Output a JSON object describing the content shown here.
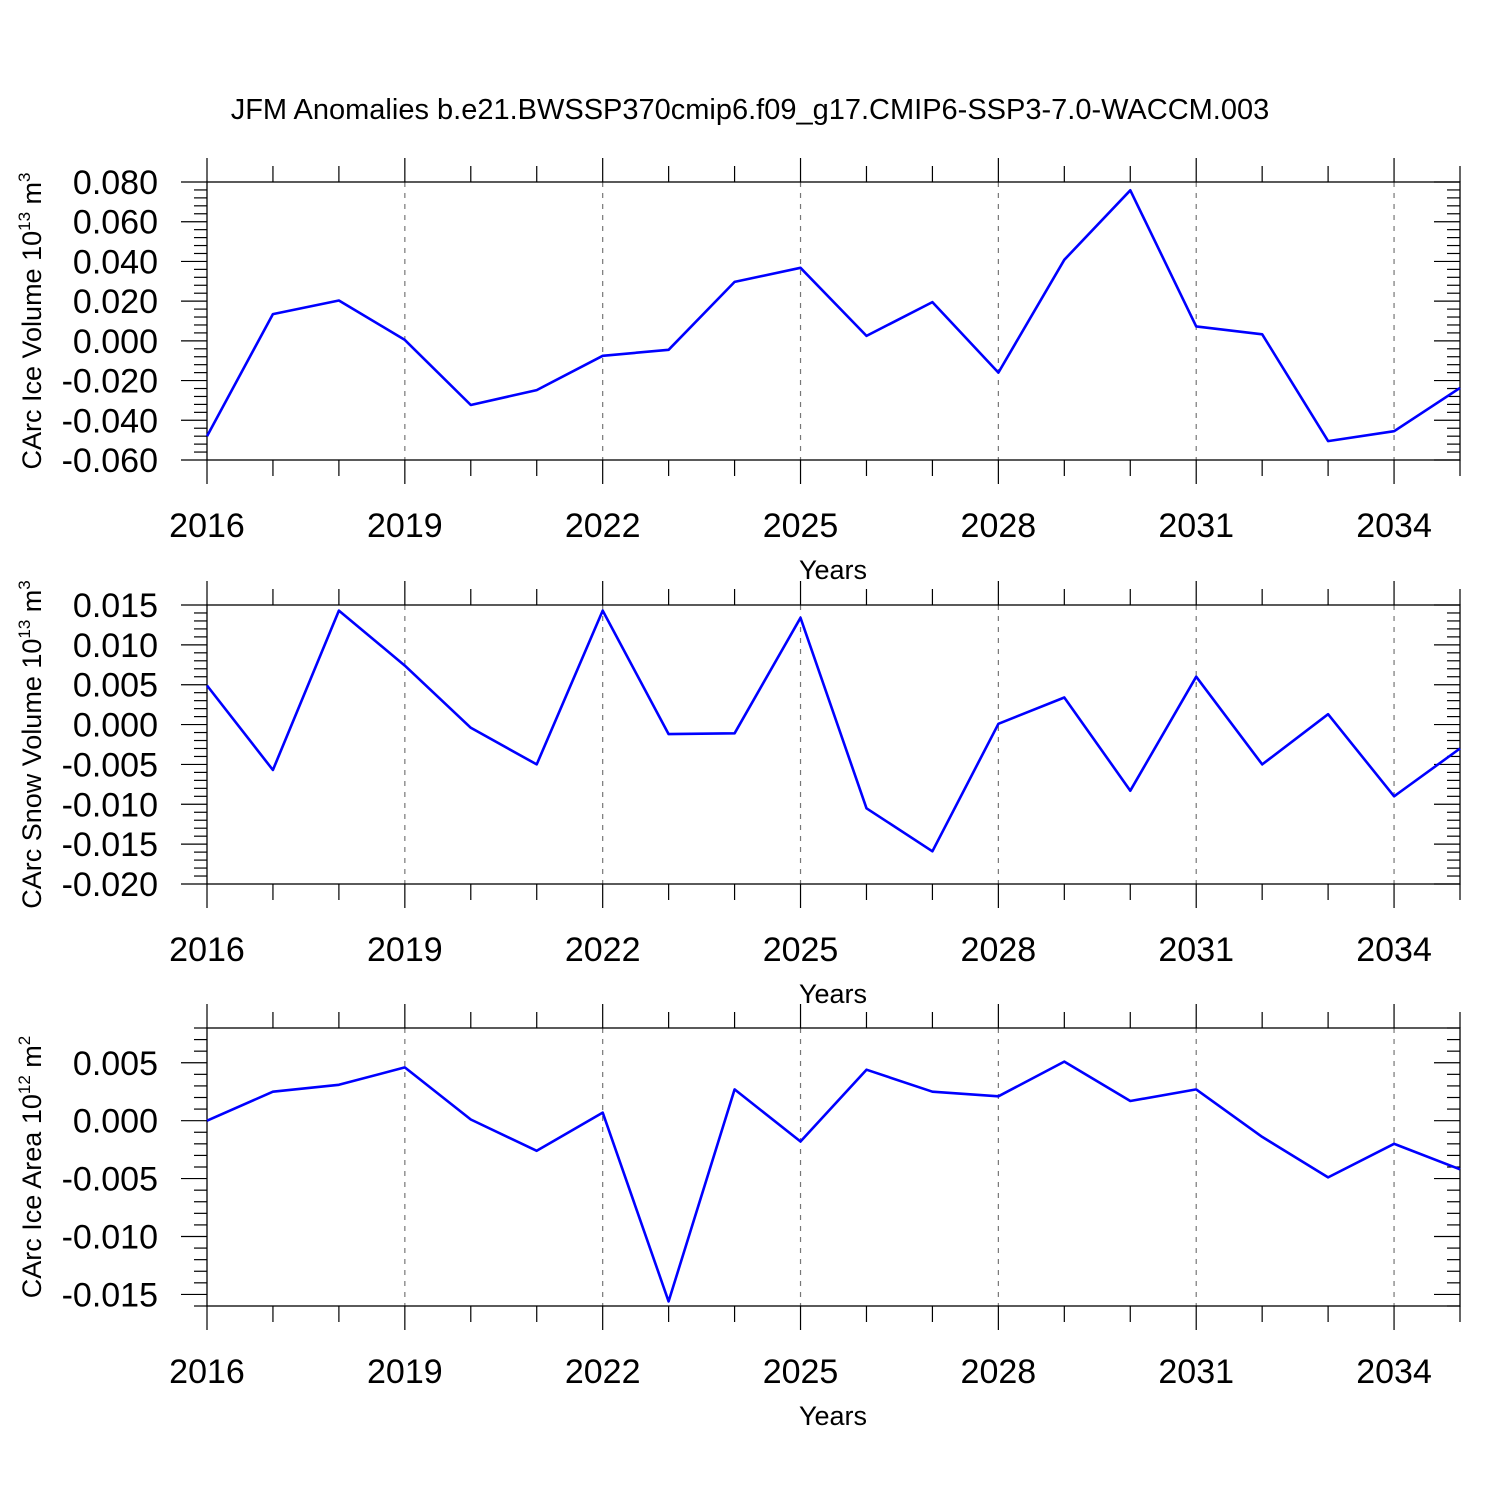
{
  "title": "JFM Anomalies b.e21.BWSSP370cmip6.f09_g17.CMIP6-SSP3-7.0-WACCM.003",
  "chart_data": [
    {
      "type": "line",
      "ylabel_main": "CArc Ice Volume 10",
      "ylabel_exp": "13",
      "ylabel_unit": " m",
      "ylabel_unit_exp": "3",
      "xlabel": "Years",
      "x": [
        2016,
        2017,
        2018,
        2019,
        2020,
        2021,
        2022,
        2023,
        2024,
        2025,
        2026,
        2027,
        2028,
        2029,
        2030,
        2031,
        2032,
        2033,
        2034,
        2035
      ],
      "values": [
        -0.048,
        0.0135,
        0.0203,
        0.0005,
        -0.0323,
        -0.0248,
        -0.0075,
        -0.0045,
        0.0297,
        0.0368,
        0.0025,
        0.0195,
        -0.016,
        0.0408,
        0.0758,
        0.0073,
        0.0033,
        -0.0505,
        -0.0455,
        -0.0237
      ],
      "xlim": [
        2016,
        2035
      ],
      "ylim": [
        -0.06,
        0.08
      ],
      "yticks": [
        -0.06,
        -0.04,
        -0.02,
        0.0,
        0.02,
        0.04,
        0.06,
        0.08
      ],
      "ytick_labels": [
        "-0.060",
        "-0.040",
        "-0.020",
        "0.000",
        "0.020",
        "0.040",
        "0.060",
        "0.080"
      ],
      "yminor_step": 0.004,
      "xticks": [
        2016,
        2019,
        2022,
        2025,
        2028,
        2031,
        2034
      ],
      "xtick_labels": [
        "2016",
        "2019",
        "2022",
        "2025",
        "2028",
        "2031",
        "2034"
      ],
      "color": "#0000ff"
    },
    {
      "type": "line",
      "ylabel_main": "CArc Snow Volume 10",
      "ylabel_exp": "13",
      "ylabel_unit": " m",
      "ylabel_unit_exp": "3",
      "xlabel": "Years",
      "x": [
        2016,
        2017,
        2018,
        2019,
        2020,
        2021,
        2022,
        2023,
        2024,
        2025,
        2026,
        2027,
        2028,
        2029,
        2030,
        2031,
        2032,
        2033,
        2034,
        2035
      ],
      "values": [
        0.0049,
        -0.0057,
        0.0143,
        0.0074,
        -0.0004,
        -0.005,
        0.0143,
        -0.0012,
        -0.0011,
        0.0134,
        -0.0105,
        -0.0159,
        0.0001,
        0.0034,
        -0.0083,
        0.006,
        -0.005,
        0.0013,
        -0.009,
        -0.003
      ],
      "xlim": [
        2016,
        2035
      ],
      "ylim": [
        -0.02,
        0.015
      ],
      "yticks": [
        -0.02,
        -0.015,
        -0.01,
        -0.005,
        0.0,
        0.005,
        0.01,
        0.015
      ],
      "ytick_labels": [
        "-0.020",
        "-0.015",
        "-0.010",
        "-0.005",
        "0.000",
        "0.005",
        "0.010",
        "0.015"
      ],
      "yminor_step": 0.001,
      "xticks": [
        2016,
        2019,
        2022,
        2025,
        2028,
        2031,
        2034
      ],
      "xtick_labels": [
        "2016",
        "2019",
        "2022",
        "2025",
        "2028",
        "2031",
        "2034"
      ],
      "color": "#0000ff"
    },
    {
      "type": "line",
      "ylabel_main": "CArc Ice Area 10",
      "ylabel_exp": "12",
      "ylabel_unit": " m",
      "ylabel_unit_exp": "2",
      "xlabel": "Years",
      "x": [
        2016,
        2017,
        2018,
        2019,
        2020,
        2021,
        2022,
        2023,
        2024,
        2025,
        2026,
        2027,
        2028,
        2029,
        2030,
        2031,
        2032,
        2033,
        2034,
        2035
      ],
      "values": [
        0.0,
        0.0025,
        0.0031,
        0.0046,
        0.0001,
        -0.0026,
        0.0007,
        -0.0156,
        0.0027,
        -0.0018,
        0.0044,
        0.0025,
        0.0021,
        0.0051,
        0.0017,
        0.0027,
        -0.0014,
        -0.0049,
        -0.002,
        -0.0042
      ],
      "xlim": [
        2016,
        2035
      ],
      "ylim": [
        -0.016,
        0.008
      ],
      "yticks": [
        -0.015,
        -0.01,
        -0.005,
        0.0,
        0.005
      ],
      "ytick_labels": [
        "-0.015",
        "-0.010",
        "-0.005",
        "0.000",
        "0.005"
      ],
      "yminor_step": 0.001,
      "xticks": [
        2016,
        2019,
        2022,
        2025,
        2028,
        2031,
        2034
      ],
      "xtick_labels": [
        "2016",
        "2019",
        "2022",
        "2025",
        "2028",
        "2031",
        "2034"
      ],
      "color": "#0000ff"
    }
  ]
}
